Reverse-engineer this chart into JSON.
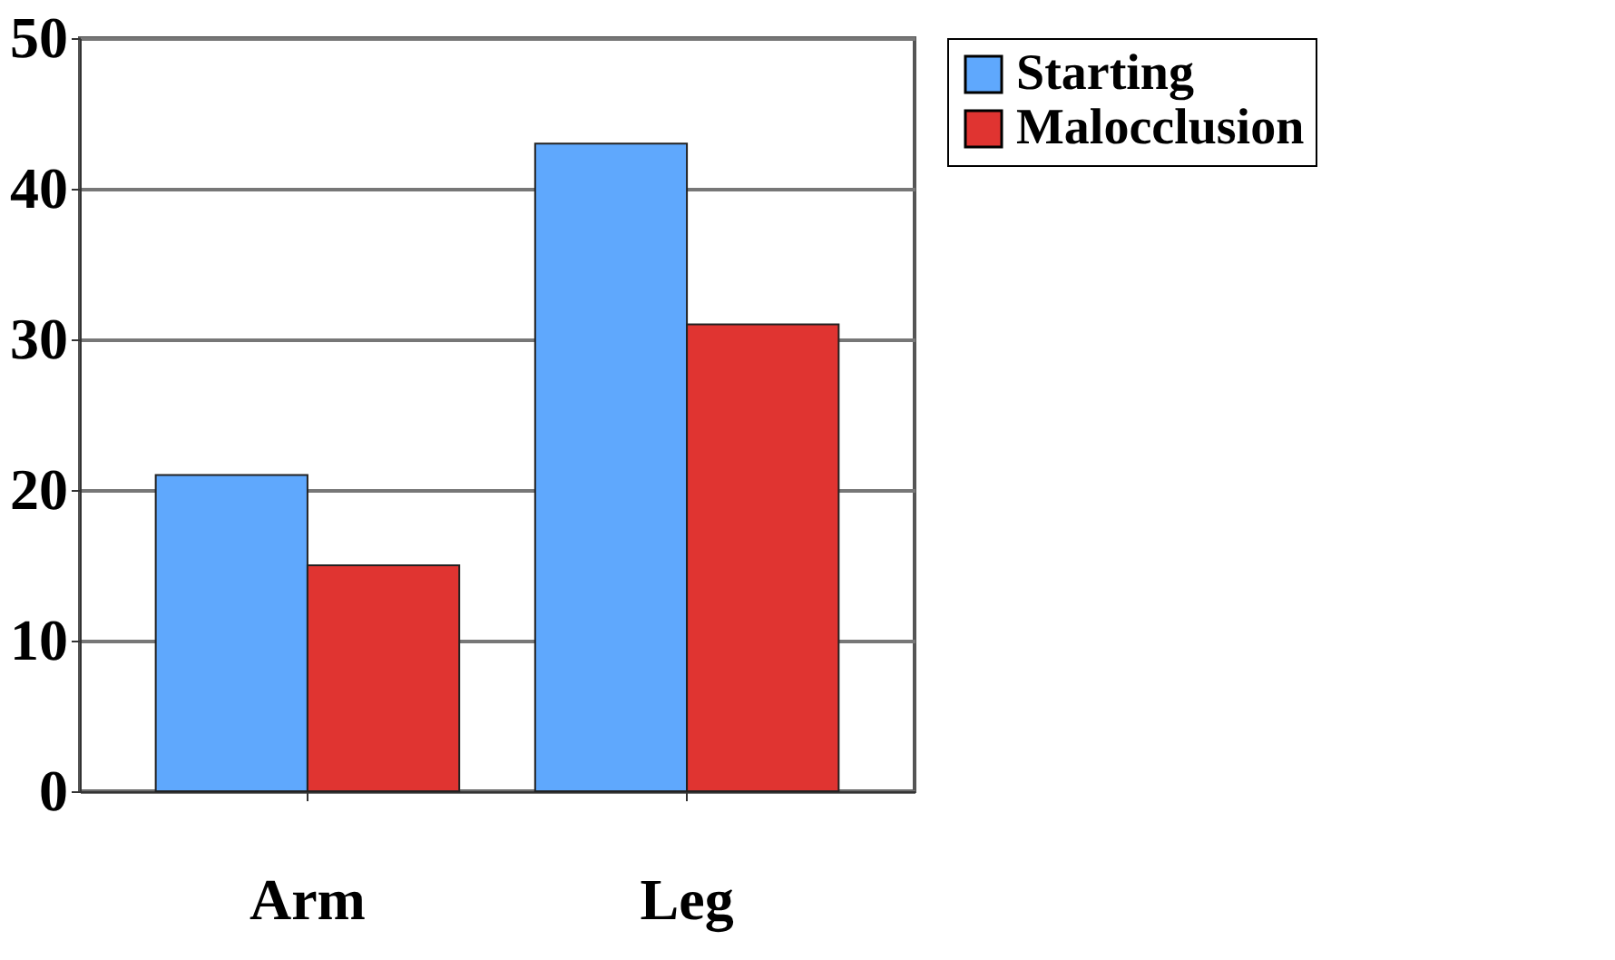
{
  "chart_data": {
    "type": "bar",
    "categories": [
      "Arm",
      "Leg"
    ],
    "series": [
      {
        "name": "Starting",
        "color": "#5fa8fd",
        "values": [
          21,
          43
        ]
      },
      {
        "name": "Malocclusion",
        "color": "#e03431",
        "values": [
          15,
          31
        ]
      }
    ],
    "ylim": [
      0,
      50
    ],
    "yticks": [
      0,
      10,
      20,
      30,
      40,
      50
    ],
    "grid": "y",
    "legend": "right"
  }
}
